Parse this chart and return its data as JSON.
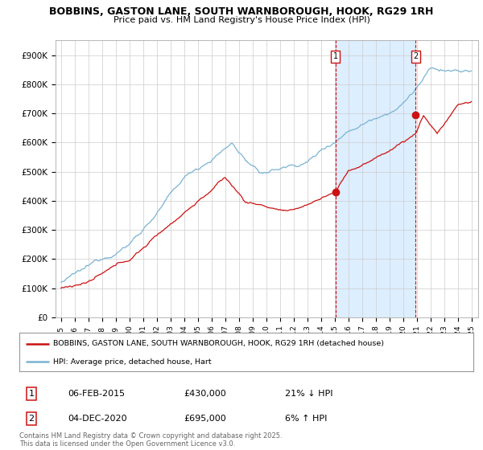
{
  "title": "BOBBINS, GASTON LANE, SOUTH WARNBOROUGH, HOOK, RG29 1RH",
  "subtitle": "Price paid vs. HM Land Registry's House Price Index (HPI)",
  "ylim": [
    0,
    950000
  ],
  "yticks": [
    0,
    100000,
    200000,
    300000,
    400000,
    500000,
    600000,
    700000,
    800000,
    900000
  ],
  "ytick_labels": [
    "£0",
    "£100K",
    "£200K",
    "£300K",
    "£400K",
    "£500K",
    "£600K",
    "£700K",
    "£800K",
    "£900K"
  ],
  "hpi_color": "#7ab3d4",
  "price_color": "#cc1111",
  "sale1_year": 2015.08,
  "sale1_price_val": 430000,
  "sale2_year": 2020.92,
  "sale2_price_val": 695000,
  "sale1_date": "06-FEB-2015",
  "sale1_price": "£430,000",
  "sale1_note": "21% ↓ HPI",
  "sale2_date": "04-DEC-2020",
  "sale2_price": "£695,000",
  "sale2_note": "6% ↑ HPI",
  "legend_label1": "BOBBINS, GASTON LANE, SOUTH WARNBOROUGH, HOOK, RG29 1RH (detached house)",
  "legend_label2": "HPI: Average price, detached house, Hart",
  "footer": "Contains HM Land Registry data © Crown copyright and database right 2025.\nThis data is licensed under the Open Government Licence v3.0.",
  "shade_color": "#ddeeff",
  "background_color": "#ffffff",
  "grid_color": "#cccccc"
}
